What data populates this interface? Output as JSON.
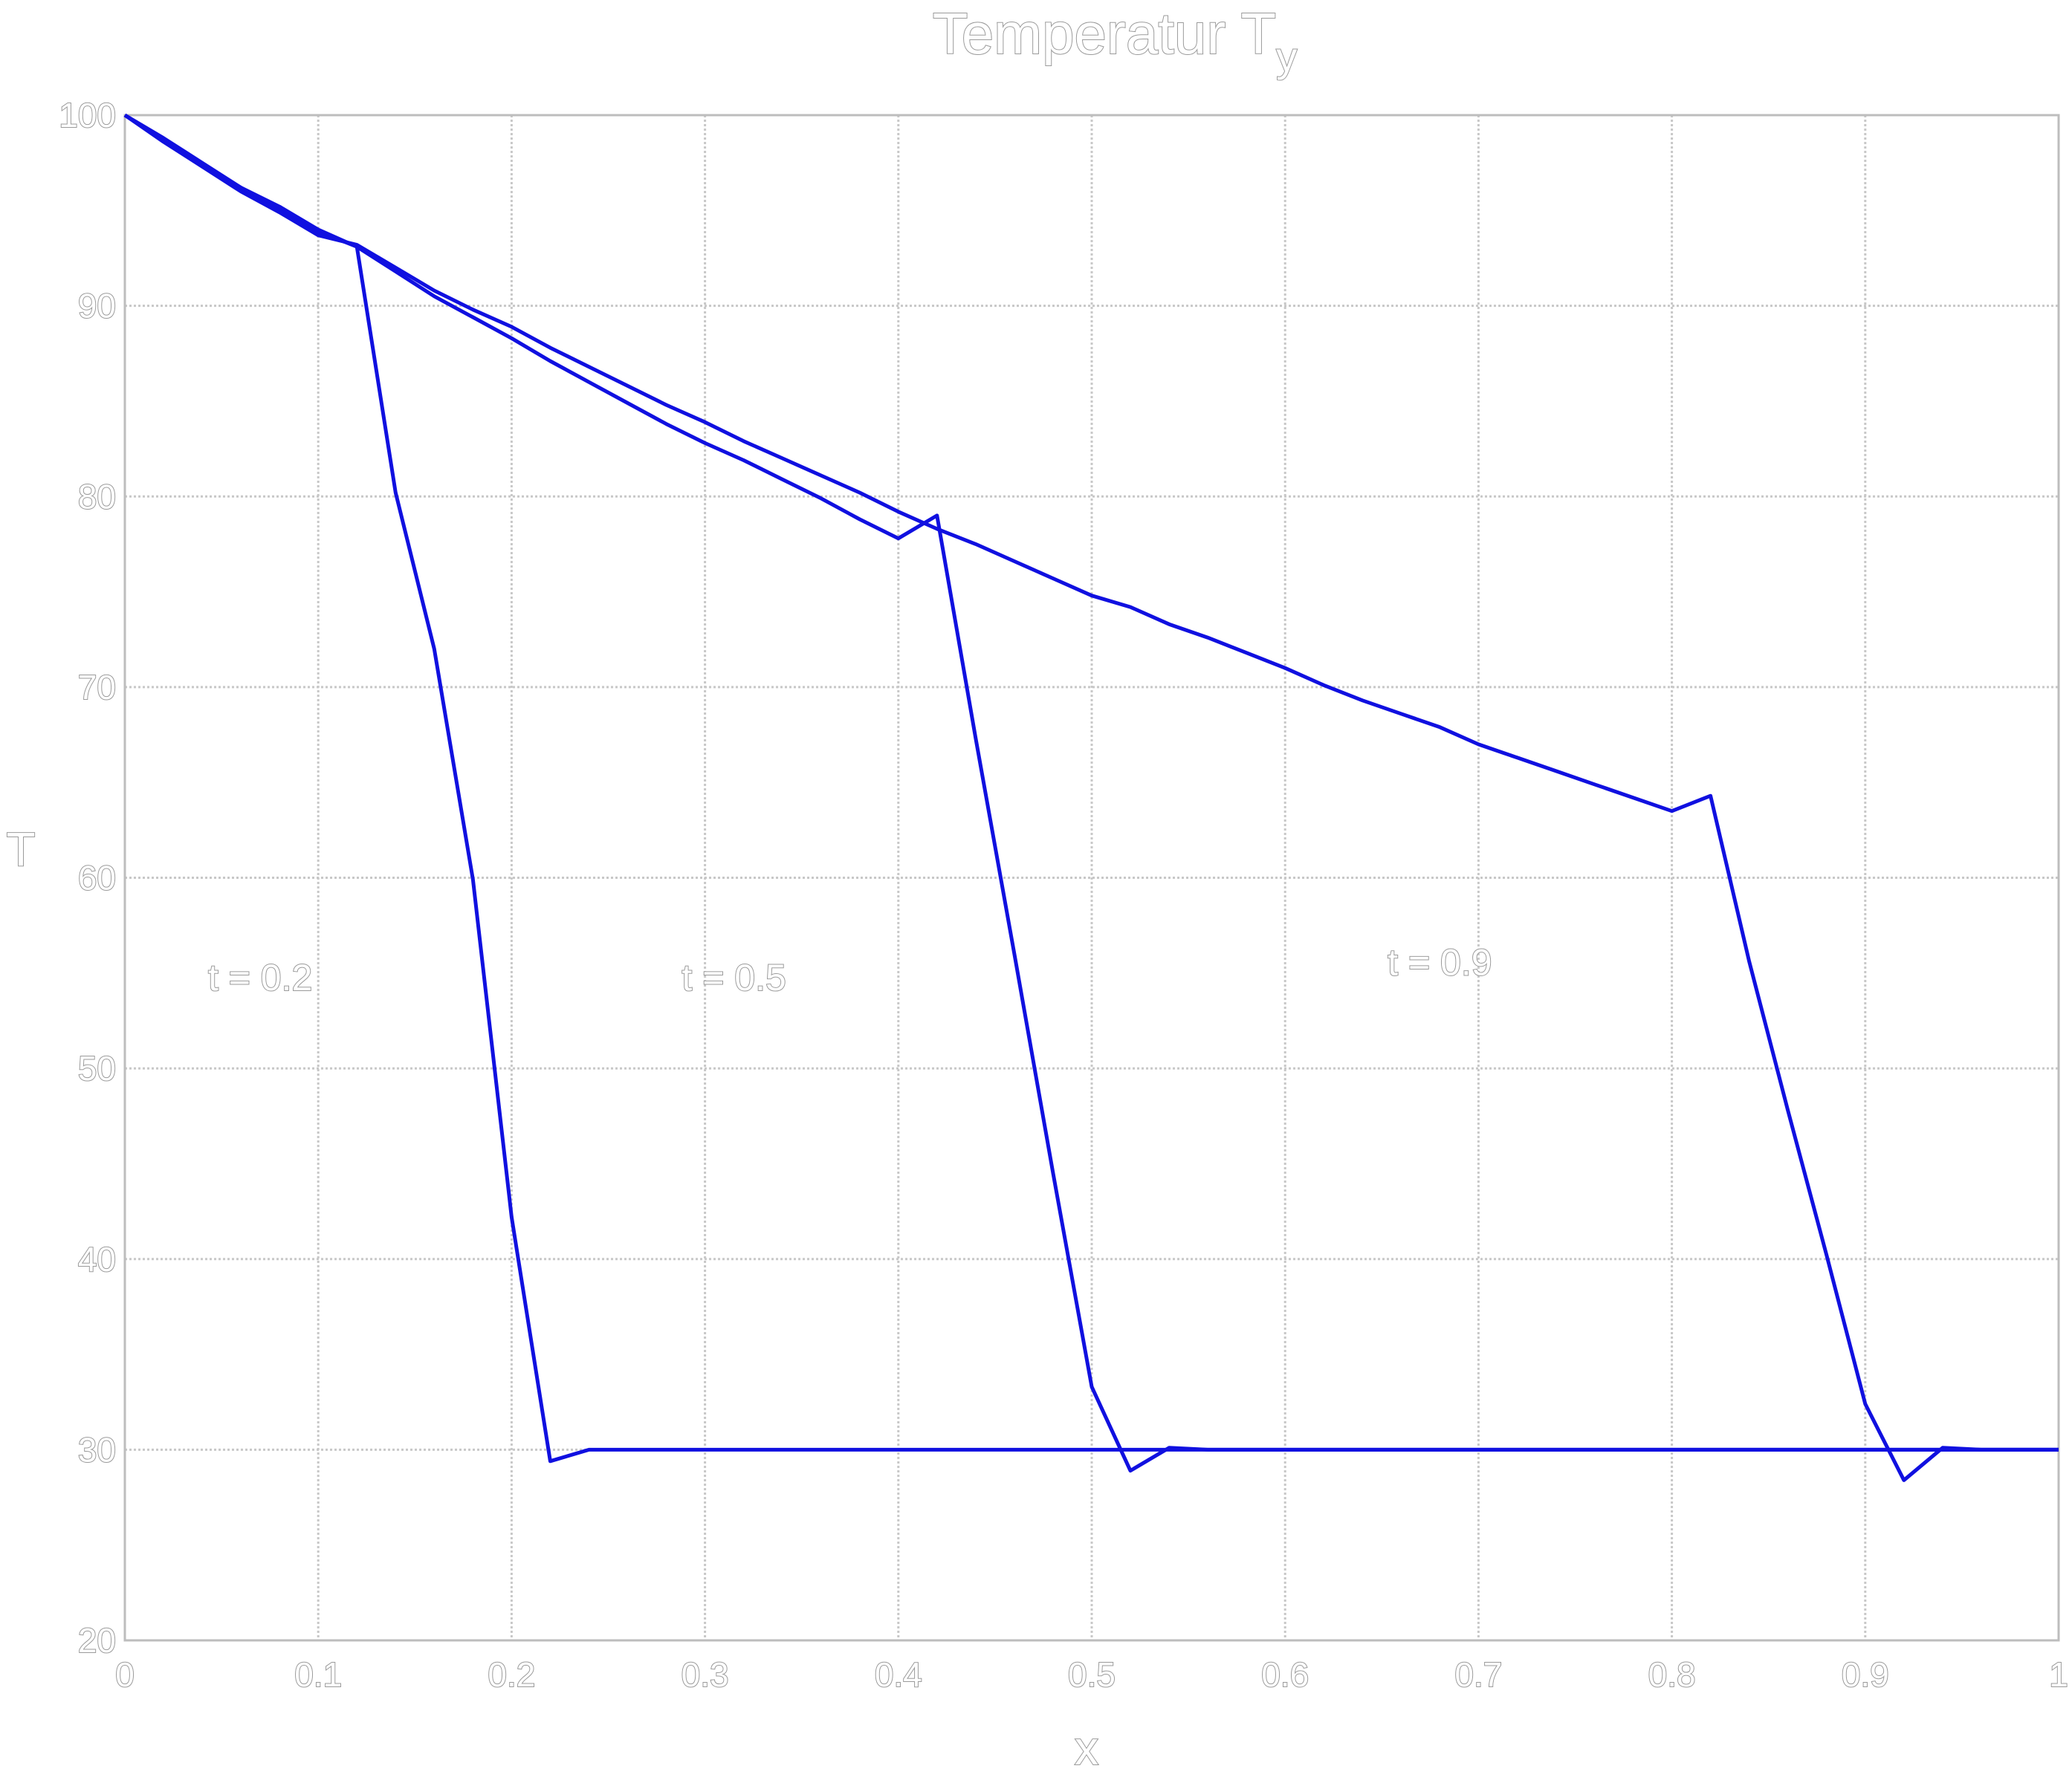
{
  "chart_data": {
    "type": "line",
    "title": "Temperatur T",
    "title_subscript": "y",
    "xlabel": "x",
    "ylabel": "T",
    "xlim": [
      0,
      1
    ],
    "ylim": [
      20,
      100
    ],
    "xticks": [
      "0",
      "0.1",
      "0.2",
      "0.3",
      "0.4",
      "0.5",
      "0.6",
      "0.7",
      "0.8",
      "0.9",
      "1"
    ],
    "yticks": [
      "20",
      "30",
      "40",
      "50",
      "60",
      "70",
      "80",
      "90",
      "100"
    ],
    "grid": true,
    "line_color": "#1010e0",
    "annotations": [
      {
        "text": "t = 0.2",
        "x": 0.07,
        "y": 54.8
      },
      {
        "text": "t = 0.5",
        "x": 0.315,
        "y": 54.8
      },
      {
        "text": "t = 0.9",
        "x": 0.68,
        "y": 55.6
      }
    ],
    "series": [
      {
        "x": [
          0,
          0.02,
          0.04,
          0.06,
          0.08,
          0.1,
          0.12,
          0.14,
          0.16,
          0.18,
          0.2,
          0.22,
          0.24,
          0.26,
          0.28,
          0.3,
          0.32,
          0.34,
          0.36,
          0.38,
          0.4,
          0.42,
          0.44,
          0.46,
          0.48,
          0.5,
          0.52,
          0.54,
          0.56,
          0.58,
          0.6,
          0.62,
          0.64,
          0.66,
          0.68,
          0.7,
          0.72,
          0.74,
          0.76,
          0.78,
          0.8,
          0.82,
          0.84,
          0.86,
          0.88,
          0.9,
          0.92,
          0.94,
          0.96,
          0.98,
          1
        ],
        "y": [
          100,
          98.6,
          97.3,
          96.0,
          94.9,
          93.7,
          93.2,
          92.0,
          90.8,
          89.8,
          88.9,
          87.8,
          86.8,
          85.8,
          84.8,
          83.9,
          82.9,
          82.0,
          81.1,
          80.2,
          79.2,
          78.3,
          77.5,
          76.6,
          75.7,
          74.8,
          74.2,
          73.3,
          72.6,
          71.8,
          71.0,
          70.1,
          69.3,
          68.6,
          67.9,
          67.0,
          66.3,
          65.6,
          64.9,
          64.2,
          63.5,
          64.3,
          55.6,
          47.8,
          40.2,
          32.4,
          28.4,
          30.1,
          30.0,
          30.0,
          30.0
        ]
      },
      {
        "x": [
          0,
          0.02,
          0.04,
          0.06,
          0.08,
          0.1,
          0.12,
          0.14,
          0.16,
          0.18,
          0.2,
          0.22,
          0.24,
          0.26,
          0.28,
          0.3,
          0.32,
          0.34,
          0.36,
          0.38,
          0.4,
          0.42,
          0.44,
          0.46,
          0.48,
          0.5,
          0.52,
          0.54,
          0.56,
          0.58,
          0.6,
          0.65,
          0.7,
          0.75,
          0.8,
          0.85,
          0.9,
          0.95,
          1
        ],
        "y": [
          100,
          98.8,
          97.5,
          96.2,
          95.0,
          93.9,
          93.1,
          91.8,
          90.5,
          89.4,
          88.3,
          87.1,
          86.0,
          84.9,
          83.8,
          82.8,
          81.9,
          80.9,
          79.9,
          78.8,
          77.8,
          79.0,
          67.3,
          56.0,
          44.5,
          33.3,
          28.9,
          30.1,
          30.0,
          30.0,
          30.0,
          30.0,
          30.0,
          30.0,
          30.0,
          30.0,
          30.0,
          30.0,
          30.0
        ]
      },
      {
        "x": [
          0,
          0.02,
          0.04,
          0.06,
          0.08,
          0.1,
          0.12,
          0.14,
          0.16,
          0.18,
          0.2,
          0.22,
          0.24,
          0.26,
          0.28,
          0.3,
          0.35,
          0.4,
          0.45,
          0.5,
          0.55,
          0.6,
          0.65,
          0.7,
          0.75,
          0.8,
          0.85,
          0.9,
          0.95,
          1
        ],
        "y": [
          100,
          98.7,
          97.4,
          96.2,
          95.2,
          94.0,
          93.1,
          80.2,
          72.0,
          59.9,
          42.2,
          29.4,
          30.0,
          30.0,
          30.0,
          30.0,
          30.0,
          30.0,
          30.0,
          30.0,
          30.0,
          30.0,
          30.0,
          30.0,
          30.0,
          30.0,
          30.0,
          30.0,
          30.0,
          30.0
        ]
      }
    ]
  }
}
